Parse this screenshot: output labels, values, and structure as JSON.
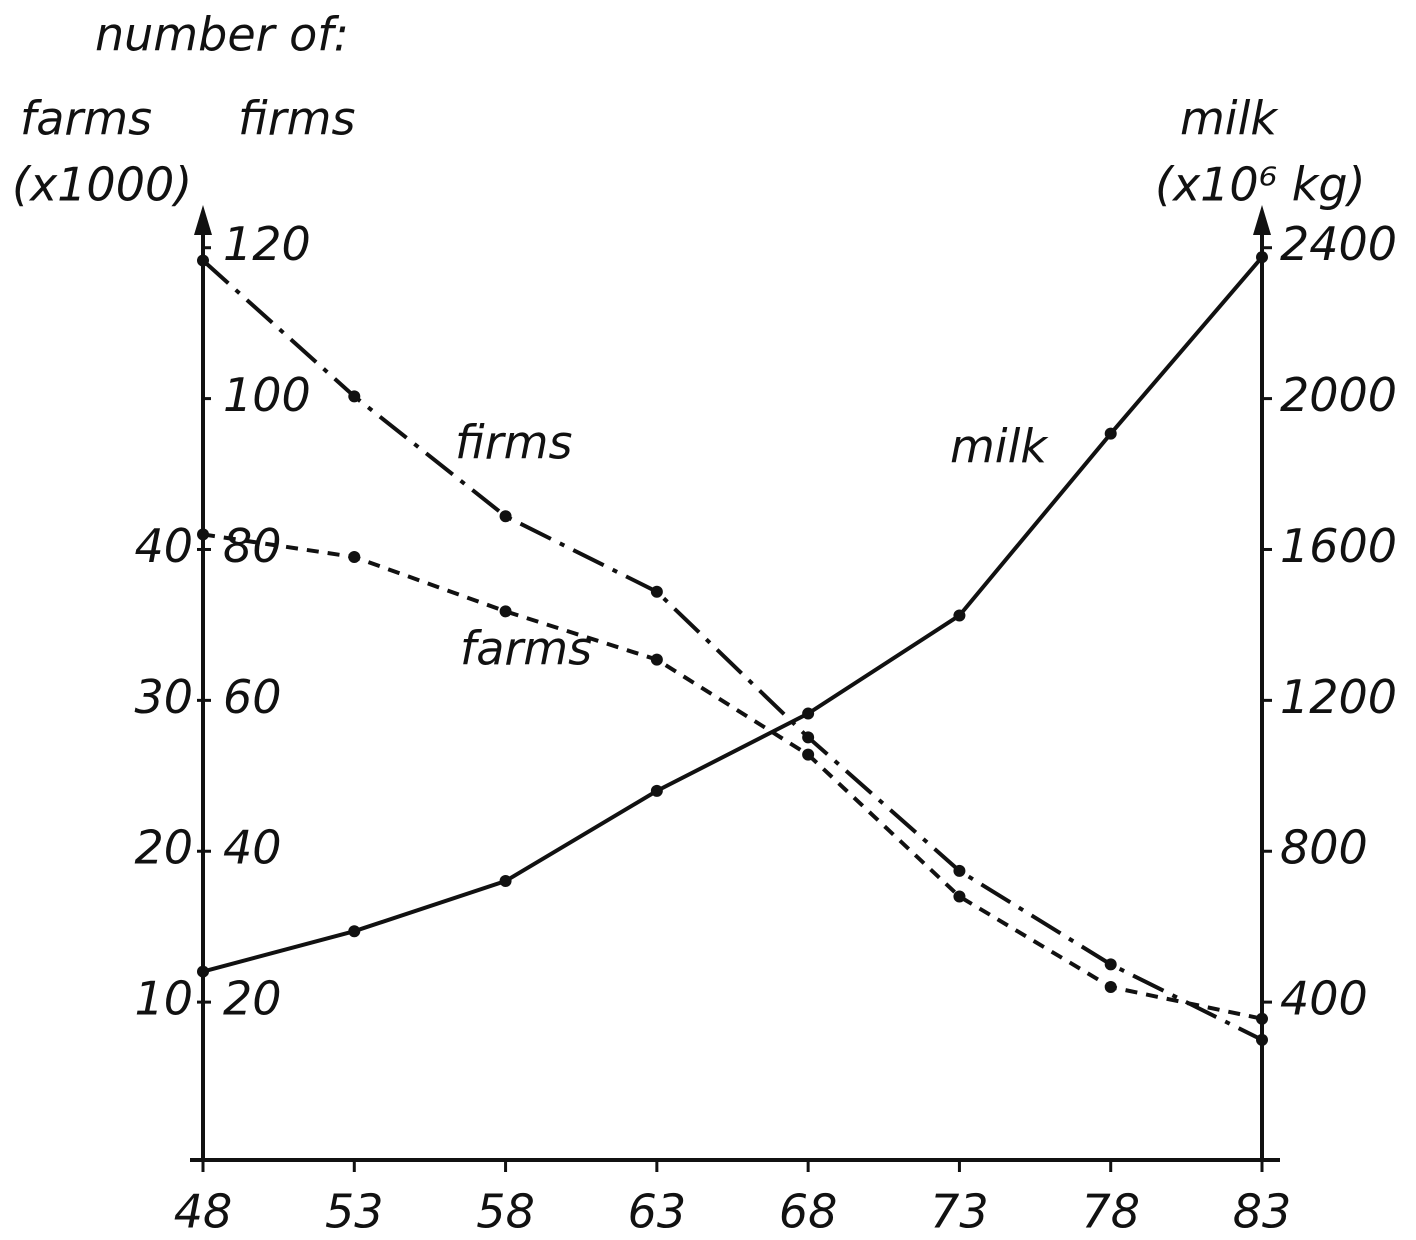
{
  "chart_data": {
    "type": "line",
    "axis_heading": "number of:",
    "ylabel": "farms",
    "ylabel_unit": "(x1000)",
    "y3label": "firms",
    "y2label": "milk",
    "y2label_unit": "(x10⁶ kg)",
    "x": [
      48,
      53,
      58,
      63,
      68,
      73,
      78,
      83
    ],
    "xlim": [
      48,
      83
    ],
    "xticks": [
      48,
      53,
      58,
      63,
      68,
      73,
      78,
      83
    ],
    "ylim": [
      0,
      62.5
    ],
    "yticks": [
      10,
      20,
      30,
      40
    ],
    "y3lim": [
      0,
      125
    ],
    "y3ticks": [
      20,
      40,
      60,
      80,
      100,
      120
    ],
    "y2lim": [
      0,
      2500
    ],
    "y2ticks": [
      400,
      800,
      1200,
      1600,
      2000,
      2400
    ],
    "series": [
      {
        "name": "farms",
        "color": "#111111",
        "linestyle": "dashed",
        "values": [
          41.0,
          39.5,
          35.9,
          32.7,
          26.4,
          17.0,
          11.0,
          8.9
        ]
      },
      {
        "name": "firms",
        "color": "#111111",
        "linestyle": "dashdot",
        "axis": "y3",
        "values": [
          118.3,
          100.3,
          84.4,
          74.4,
          55.1,
          37.4,
          25.0,
          15.0
        ]
      },
      {
        "name": "milk",
        "color": "#111111",
        "linestyle": "solid",
        "axis": "y2",
        "values": [
          481,
          588,
          721,
          960,
          1165,
          1425,
          1907,
          2375
        ]
      }
    ]
  }
}
